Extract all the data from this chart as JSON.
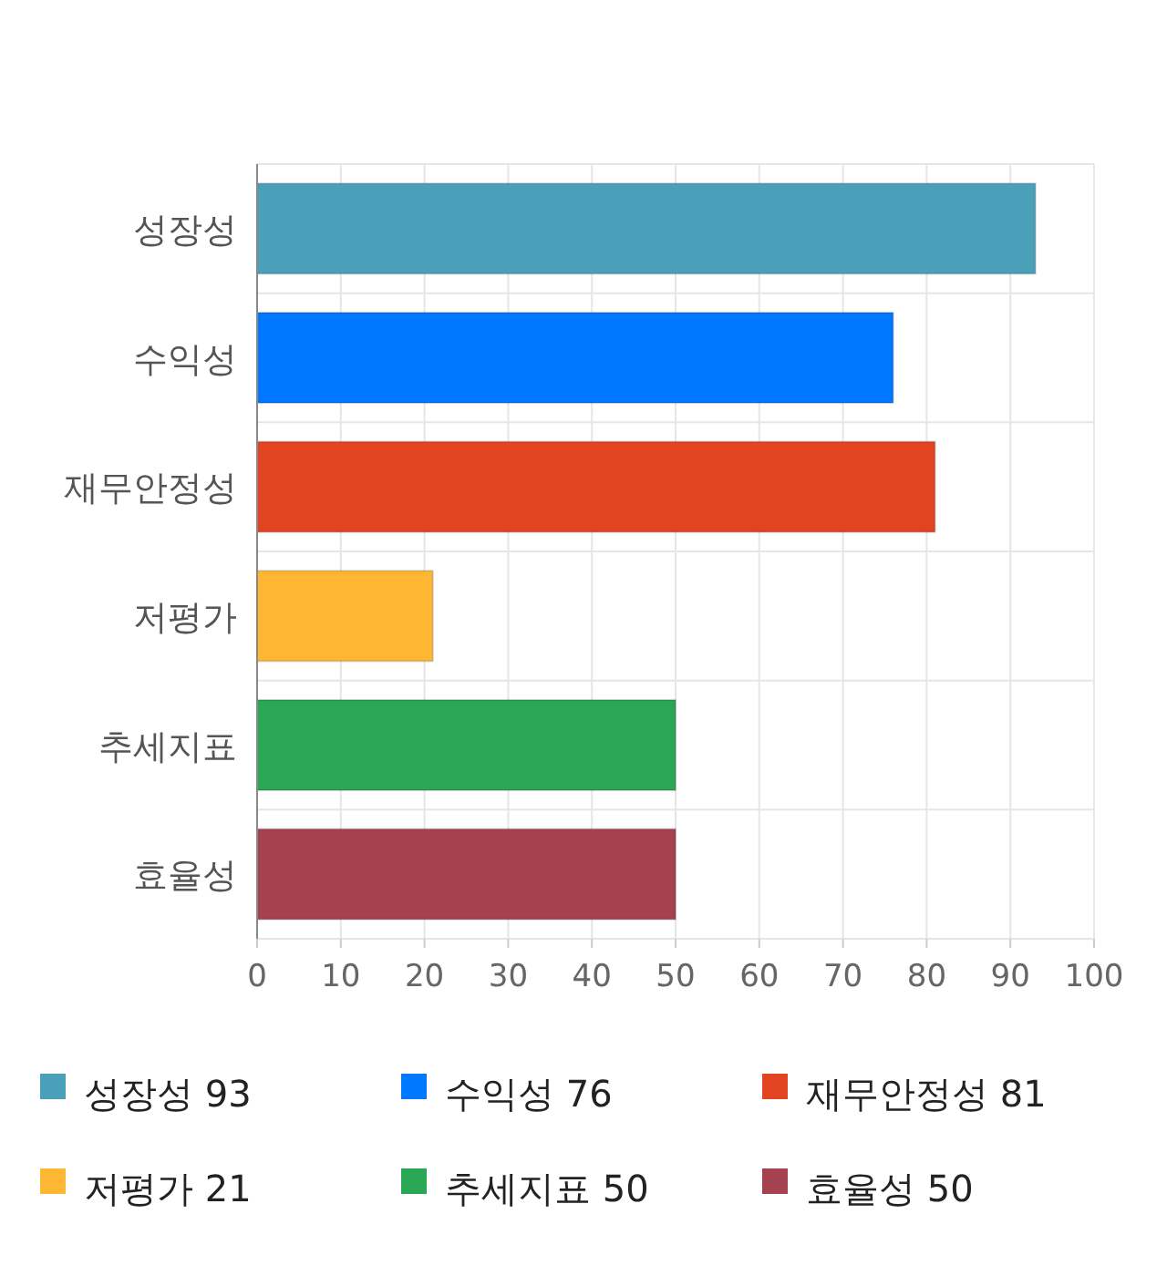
{
  "chart_data": {
    "type": "bar",
    "orientation": "horizontal",
    "stacked": true,
    "categories": [
      "성장성",
      "수익성",
      "재무안정성",
      "저평가",
      "추세지표",
      "효율성"
    ],
    "series": [
      {
        "name": "성장성 93",
        "color": "#4aa0b9",
        "values": [
          93,
          null,
          null,
          null,
          null,
          null
        ]
      },
      {
        "name": "수익성 76",
        "color": "#0077ff",
        "values": [
          null,
          76,
          null,
          null,
          null,
          null
        ]
      },
      {
        "name": "재무안정성 81",
        "color": "#e24422",
        "values": [
          null,
          null,
          81,
          null,
          null,
          null
        ]
      },
      {
        "name": "저평가 21",
        "color": "#ffb733",
        "values": [
          null,
          null,
          null,
          21,
          null,
          null
        ]
      },
      {
        "name": "추세지표 50",
        "color": "#29a755",
        "values": [
          null,
          null,
          null,
          null,
          50,
          null
        ]
      },
      {
        "name": "효율성 50",
        "color": "#a6424f",
        "values": [
          null,
          null,
          null,
          null,
          null,
          50
        ]
      }
    ],
    "xlim": [
      0,
      100
    ],
    "xticks": [
      0,
      10,
      20,
      30,
      40,
      50,
      60,
      70,
      80,
      90,
      100
    ],
    "grid": true,
    "legend": "bottom"
  }
}
